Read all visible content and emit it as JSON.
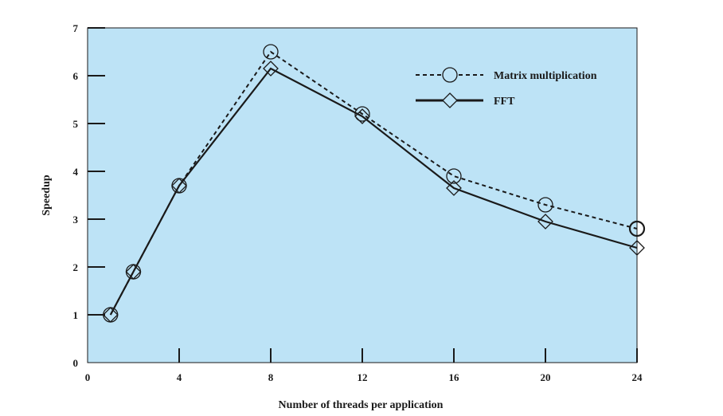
{
  "chart_data": {
    "type": "line",
    "xlabel": "Number of threads per application",
    "ylabel": "Speedup",
    "xlim": [
      0,
      24
    ],
    "ylim": [
      0,
      7
    ],
    "x_ticks": [
      0,
      4,
      8,
      12,
      16,
      20,
      24
    ],
    "y_ticks": [
      0,
      1,
      2,
      3,
      4,
      5,
      6,
      7
    ],
    "grid": false,
    "legend_position": "top-right",
    "colors": {
      "plot_background": "#bde3f6",
      "line": "#1a1a1a"
    },
    "series": [
      {
        "name": "Matrix multiplication",
        "marker": "circle",
        "line_style": "dashed",
        "x": [
          1,
          2,
          4,
          8,
          12,
          16,
          20,
          24
        ],
        "y": [
          1.0,
          1.9,
          3.7,
          6.5,
          5.2,
          3.9,
          3.3,
          2.8
        ]
      },
      {
        "name": "FFT",
        "marker": "diamond",
        "line_style": "solid",
        "x": [
          1,
          2,
          4,
          8,
          12,
          16,
          20,
          24
        ],
        "y": [
          1.0,
          1.9,
          3.7,
          6.15,
          5.15,
          3.65,
          2.95,
          2.4
        ]
      }
    ]
  }
}
